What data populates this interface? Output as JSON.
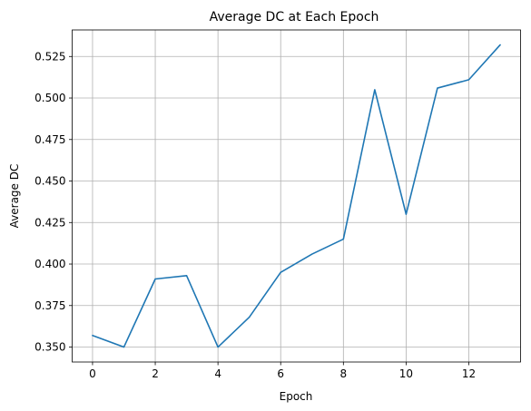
{
  "chart_data": {
    "type": "line",
    "title": "Average DC at Each Epoch",
    "xlabel": "Epoch",
    "ylabel": "Average DC",
    "xlim": [
      -0.65,
      13.65
    ],
    "ylim": [
      0.341,
      0.541
    ],
    "x_ticks": [
      0,
      2,
      4,
      6,
      8,
      10,
      12
    ],
    "y_ticks": [
      0.35,
      0.375,
      0.4,
      0.425,
      0.45,
      0.475,
      0.5,
      0.525
    ],
    "y_tick_labels": [
      "0.350",
      "0.375",
      "0.400",
      "0.425",
      "0.450",
      "0.475",
      "0.500",
      "0.525"
    ],
    "grid": true,
    "series": [
      {
        "color": "#1f77b4",
        "x": [
          0,
          1,
          2,
          3,
          4,
          5,
          6,
          7,
          8,
          9,
          10,
          11,
          12,
          13
        ],
        "values": [
          0.357,
          0.35,
          0.391,
          0.393,
          0.35,
          0.368,
          0.395,
          0.406,
          0.415,
          0.505,
          0.43,
          0.506,
          0.511,
          0.532
        ]
      }
    ]
  }
}
